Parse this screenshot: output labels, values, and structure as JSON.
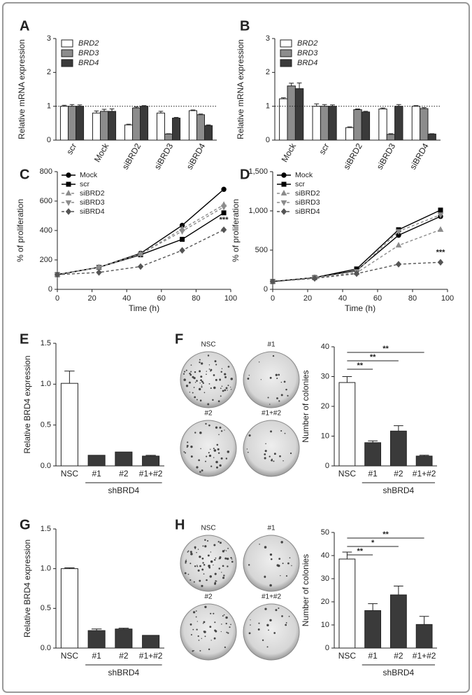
{
  "chart_data": [
    {
      "type": "grouped-bar",
      "panel": "A",
      "y_label": "Relative mRNA expression",
      "categories": [
        "scr",
        "Mock",
        "siBRD2",
        "siBRD3",
        "siBRD4"
      ],
      "series": [
        {
          "name": "BRD2",
          "color": "#ffffff",
          "values": [
            1.0,
            0.8,
            0.45,
            0.8,
            0.87
          ],
          "errors": [
            0.03,
            0.06,
            0.02,
            0.05,
            0.02
          ]
        },
        {
          "name": "BRD3",
          "color": "#8c8c8c",
          "values": [
            1.0,
            0.85,
            0.95,
            0.18,
            0.75
          ],
          "errors": [
            0.05,
            0.06,
            0.03,
            0.01,
            0.02
          ]
        },
        {
          "name": "BRD4",
          "color": "#3a3a3a",
          "values": [
            1.0,
            0.85,
            1.0,
            0.65,
            0.43
          ],
          "errors": [
            0.04,
            0.07,
            0.02,
            0.02,
            0.02
          ]
        }
      ],
      "ylim": [
        0,
        3
      ],
      "yticks": [
        0,
        1,
        2,
        3
      ],
      "reference_line": 1
    },
    {
      "type": "grouped-bar",
      "panel": "B",
      "y_label": "Relative mRNA expression",
      "categories": [
        "Mock",
        "scr",
        "siBRD2",
        "siBRD3",
        "siBRD4"
      ],
      "series": [
        {
          "name": "BRD2",
          "color": "#ffffff",
          "values": [
            1.22,
            1.0,
            0.37,
            0.92,
            1.0
          ],
          "errors": [
            0.03,
            0.07,
            0.02,
            0.03,
            0.02
          ]
        },
        {
          "name": "BRD3",
          "color": "#8c8c8c",
          "values": [
            1.6,
            1.0,
            0.9,
            0.17,
            0.93
          ],
          "errors": [
            0.08,
            0.05,
            0.02,
            0.02,
            0.03
          ]
        },
        {
          "name": "BRD4",
          "color": "#3a3a3a",
          "values": [
            1.52,
            1.0,
            0.83,
            1.0,
            0.18
          ],
          "errors": [
            0.17,
            0.04,
            0.02,
            0.05,
            0.01
          ]
        }
      ],
      "ylim": [
        0,
        3
      ],
      "yticks": [
        0,
        1,
        2,
        3
      ],
      "reference_line": 1
    },
    {
      "type": "line",
      "panel": "C",
      "y_label": "% of proliferation",
      "x_label": "Time (h)",
      "x": [
        0,
        24,
        48,
        72,
        96
      ],
      "series": [
        {
          "name": "Mock",
          "color": "#000000",
          "marker": "circle",
          "dashed": false,
          "values": [
            100,
            150,
            245,
            435,
            680
          ]
        },
        {
          "name": "scr",
          "color": "#000000",
          "marker": "square",
          "dashed": false,
          "values": [
            100,
            150,
            235,
            340,
            520
          ]
        },
        {
          "name": "siBRD2",
          "color": "#8c8c8c",
          "marker": "triangle-up",
          "dashed": true,
          "values": [
            100,
            150,
            240,
            410,
            575
          ]
        },
        {
          "name": "siBRD3",
          "color": "#8c8c8c",
          "marker": "triangle-down",
          "dashed": true,
          "values": [
            100,
            150,
            240,
            395,
            560
          ]
        },
        {
          "name": "siBRD4",
          "color": "#555555",
          "marker": "diamond",
          "dashed": true,
          "values": [
            100,
            115,
            155,
            265,
            405
          ]
        }
      ],
      "annotation": "***",
      "xlim": [
        0,
        100
      ],
      "xticks": [
        0,
        20,
        40,
        60,
        80,
        100
      ],
      "ylim": [
        0,
        800
      ],
      "yticks": [
        0,
        200,
        400,
        600,
        800
      ]
    },
    {
      "type": "line",
      "panel": "D",
      "y_label": "% of proliferation",
      "x_label": "Time (h)",
      "x": [
        0,
        24,
        48,
        72,
        96
      ],
      "series": [
        {
          "name": "Mock",
          "color": "#000000",
          "marker": "circle",
          "dashed": false,
          "values": [
            100,
            150,
            240,
            690,
            930
          ]
        },
        {
          "name": "scr",
          "color": "#000000",
          "marker": "square",
          "dashed": false,
          "values": [
            100,
            150,
            260,
            760,
            1010
          ]
        },
        {
          "name": "siBRD2",
          "color": "#8c8c8c",
          "marker": "triangle-up",
          "dashed": true,
          "values": [
            100,
            150,
            210,
            560,
            760
          ]
        },
        {
          "name": "siBRD3",
          "color": "#8c8c8c",
          "marker": "triangle-down",
          "dashed": true,
          "values": [
            100,
            150,
            230,
            740,
            950
          ]
        },
        {
          "name": "siBRD4",
          "color": "#555555",
          "marker": "diamond",
          "dashed": true,
          "values": [
            100,
            140,
            200,
            320,
            345
          ]
        }
      ],
      "annotation": "***",
      "xlim": [
        0,
        100
      ],
      "xticks": [
        0,
        20,
        40,
        60,
        80,
        100
      ],
      "ylim": [
        0,
        1500
      ],
      "yticks": [
        0,
        500,
        {
          "value": 1000,
          "label": "1,000"
        },
        {
          "value": 1500,
          "label": "1,500"
        }
      ]
    },
    {
      "type": "bar",
      "panel": "E",
      "y_label": "Relative BRD4 expression",
      "group_label": "shBRD4",
      "categories": [
        "NSC",
        "#1",
        "#2",
        "#1+#2"
      ],
      "values": [
        1.01,
        0.13,
        0.17,
        0.12
      ],
      "errors": [
        0.15,
        0,
        0,
        0.01
      ],
      "colors": [
        "#ffffff",
        "#3a3a3a",
        "#3a3a3a",
        "#3a3a3a"
      ],
      "ylim": [
        0,
        1.5
      ],
      "yticks": [
        {
          "value": 0,
          "label": "0.0"
        },
        0.5,
        {
          "value": 1,
          "label": "1.0"
        },
        1.5
      ]
    },
    {
      "type": "bar",
      "panel": "F",
      "y_label": "Number of colonies",
      "group_label": "shBRD4",
      "plate_labels": [
        "NSC",
        "#1",
        "#2",
        "#1+#2"
      ],
      "categories": [
        "NSC",
        "#1",
        "#2",
        "#1+#2"
      ],
      "values": [
        28,
        7.8,
        11.7,
        3.3
      ],
      "errors": [
        2,
        0.6,
        1.8,
        0.3
      ],
      "colors": [
        "#ffffff",
        "#3a3a3a",
        "#3a3a3a",
        "#3a3a3a"
      ],
      "significance": [
        "**",
        "**",
        "**"
      ],
      "ylim": [
        0,
        40
      ],
      "yticks": [
        0,
        10,
        20,
        30,
        40
      ]
    },
    {
      "type": "bar",
      "panel": "G",
      "y_label": "Relative BRD4 expression",
      "group_label": "shBRD4",
      "categories": [
        "NSC",
        "#1",
        "#2",
        "#1+#2"
      ],
      "values": [
        1.0,
        0.22,
        0.24,
        0.16
      ],
      "errors": [
        0.01,
        0.02,
        0.01,
        0
      ],
      "colors": [
        "#ffffff",
        "#3a3a3a",
        "#3a3a3a",
        "#3a3a3a"
      ],
      "ylim": [
        0,
        1.5
      ],
      "yticks": [
        {
          "value": 0,
          "label": "0.0"
        },
        0.5,
        {
          "value": 1,
          "label": "1.0"
        },
        1.5
      ]
    },
    {
      "type": "bar",
      "panel": "H",
      "y_label": "Number of colonies",
      "group_label": "shBRD4",
      "plate_labels": [
        "NSC",
        "#1",
        "#2",
        "#1+#2"
      ],
      "categories": [
        "NSC",
        "#1",
        "#2",
        "#1+#2"
      ],
      "values": [
        38.5,
        16.2,
        23,
        10.2
      ],
      "errors": [
        3,
        3,
        3.8,
        3.5
      ],
      "colors": [
        "#ffffff",
        "#3a3a3a",
        "#3a3a3a",
        "#3a3a3a"
      ],
      "significance": [
        "**",
        "*",
        "**"
      ],
      "ylim": [
        0,
        50
      ],
      "yticks": [
        0,
        10,
        20,
        30,
        40,
        50
      ]
    }
  ]
}
